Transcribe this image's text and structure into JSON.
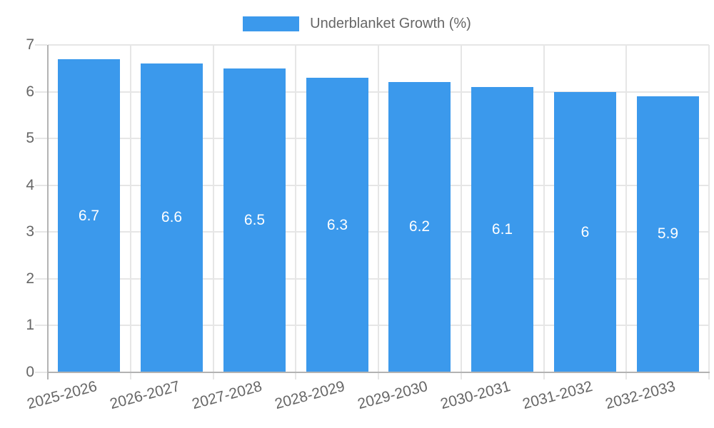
{
  "legend": {
    "label": "Underblanket Growth (%)"
  },
  "chart_data": {
    "type": "bar",
    "title": "",
    "series_name": "Underblanket Growth (%)",
    "categories": [
      "2025-2026",
      "2026-2027",
      "2027-2028",
      "2028-2029",
      "2029-2030",
      "2030-2031",
      "2031-2032",
      "2032-2033"
    ],
    "values": [
      6.7,
      6.6,
      6.5,
      6.3,
      6.2,
      6.1,
      6,
      5.9
    ],
    "values_display": [
      "6.7",
      "6.6",
      "6.5",
      "6.3",
      "6.2",
      "6.1",
      "6",
      "5.9"
    ],
    "xlabel": "",
    "ylabel": "",
    "ylim": [
      0,
      7
    ],
    "y_ticks": [
      0,
      1,
      2,
      3,
      4,
      5,
      6,
      7
    ],
    "grid": true,
    "legend_position": "top",
    "bar_label_position": "center",
    "colors": {
      "bar": "#3b99ec",
      "bar_label": "#ffffff",
      "axis_text": "#666666",
      "grid_line": "#e6e6e6",
      "axis_line": "#b3b3b3",
      "background": "#ffffff"
    }
  }
}
